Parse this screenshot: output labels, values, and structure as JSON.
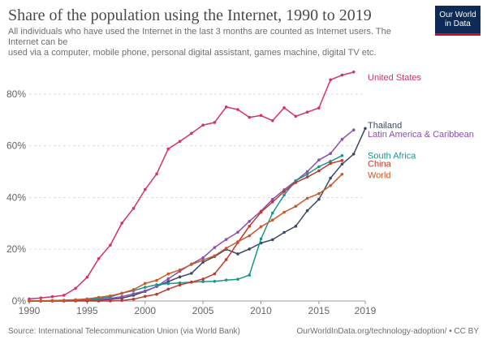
{
  "header": {
    "title": "Share of the population using the Internet, 1990 to 2019",
    "subtitle_line1": "All individuals who have used the Internet in the last 3 months are counted as Internet users. The Internet can be",
    "subtitle_line2": "used via a computer, mobile phone, personal digital assistant, games machine, digital TV etc."
  },
  "logo": {
    "line1": "Our World",
    "line2": "in Data",
    "bg": "#0d2b54",
    "accent": "#c8102e"
  },
  "footer": {
    "source": "Source: International Telecommunication Union (via World Bank)",
    "link": "OurWorldInData.org/technology-adoption/ • CC BY"
  },
  "chart_data": {
    "type": "line",
    "title": "Share of the population using the Internet, 1990 to 2019",
    "xlabel": "",
    "ylabel": "",
    "xlim": [
      1990,
      2019
    ],
    "ylim": [
      0,
      90
    ],
    "grid": true,
    "x_ticks": [
      "1990",
      "1995",
      "2000",
      "2005",
      "2010",
      "2015",
      "2019"
    ],
    "y_ticks": [
      "0%",
      "20%",
      "40%",
      "60%",
      "80%"
    ],
    "y_tick_values": [
      0,
      20,
      40,
      60,
      80
    ],
    "x_tick_values": [
      1990,
      1995,
      2000,
      2005,
      2010,
      2015,
      2019
    ],
    "series": [
      {
        "name": "United States",
        "color": "#d6306f",
        "x": [
          1990,
          1991,
          1992,
          1993,
          1994,
          1995,
          1996,
          1997,
          1998,
          1999,
          2000,
          2001,
          2002,
          2003,
          2004,
          2005,
          2006,
          2007,
          2008,
          2009,
          2010,
          2011,
          2012,
          2013,
          2014,
          2015,
          2016,
          2017,
          2018
        ],
        "values": [
          0.8,
          1.2,
          1.7,
          2.2,
          4.9,
          9.2,
          16.4,
          21.6,
          30.1,
          35.8,
          43.1,
          49.1,
          58.8,
          61.7,
          64.8,
          68.0,
          69.0,
          75.0,
          74.0,
          71.0,
          71.7,
          69.7,
          74.7,
          71.4,
          73.0,
          74.6,
          85.5,
          87.3,
          88.5
        ]
      },
      {
        "name": "Thailand",
        "color": "#3a4a66",
        "x": [
          1990,
          1991,
          1992,
          1993,
          1994,
          1995,
          1996,
          1997,
          1998,
          1999,
          2000,
          2001,
          2002,
          2003,
          2004,
          2005,
          2006,
          2007,
          2008,
          2009,
          2010,
          2011,
          2012,
          2013,
          2014,
          2015,
          2016,
          2017,
          2018,
          2019
        ],
        "values": [
          0,
          0,
          0,
          0,
          0.1,
          0.1,
          0.3,
          0.6,
          1.1,
          2.2,
          3.7,
          5.6,
          7.5,
          9.3,
          10.7,
          15.0,
          17.2,
          20.0,
          18.2,
          20.1,
          22.4,
          23.7,
          26.5,
          28.9,
          34.9,
          39.3,
          47.5,
          52.9,
          56.8,
          66.7
        ]
      },
      {
        "name": "Latin America & Caribbean",
        "color": "#8a4fb0",
        "x": [
          1990,
          1991,
          1992,
          1993,
          1994,
          1995,
          1996,
          1997,
          1998,
          1999,
          2000,
          2001,
          2002,
          2003,
          2004,
          2005,
          2006,
          2007,
          2008,
          2009,
          2010,
          2011,
          2012,
          2013,
          2014,
          2015,
          2016,
          2017,
          2018
        ],
        "values": [
          0,
          0,
          0,
          0.1,
          0.2,
          0.3,
          0.5,
          1.0,
          1.7,
          2.8,
          3.9,
          5.6,
          8.6,
          11.5,
          14.3,
          16.7,
          20.7,
          23.8,
          26.6,
          30.8,
          34.7,
          39.3,
          43.0,
          46.4,
          50.0,
          54.5,
          57.0,
          62.5,
          66.1
        ]
      },
      {
        "name": "South Africa",
        "color": "#17968e",
        "x": [
          1990,
          1991,
          1992,
          1993,
          1994,
          1995,
          1996,
          1997,
          1998,
          1999,
          2000,
          2001,
          2002,
          2003,
          2004,
          2005,
          2006,
          2007,
          2008,
          2009,
          2010,
          2011,
          2012,
          2013,
          2014,
          2015,
          2016,
          2017
        ],
        "values": [
          0,
          0,
          0.1,
          0.2,
          0.4,
          0.7,
          0.9,
          1.6,
          3.0,
          4.0,
          5.3,
          6.3,
          6.7,
          7.0,
          7.3,
          7.5,
          7.6,
          8.1,
          8.4,
          10.0,
          24.0,
          34.0,
          41.0,
          46.5,
          49.0,
          51.9,
          54.0,
          56.2
        ]
      },
      {
        "name": "China",
        "color": "#c0392b",
        "x": [
          1990,
          1991,
          1992,
          1993,
          1994,
          1995,
          1996,
          1997,
          1998,
          1999,
          2000,
          2001,
          2002,
          2003,
          2004,
          2005,
          2006,
          2007,
          2008,
          2009,
          2010,
          2011,
          2012,
          2013,
          2014,
          2015,
          2016,
          2017
        ],
        "values": [
          0,
          0,
          0,
          0,
          0,
          0,
          0,
          0,
          0.2,
          0.7,
          1.8,
          2.6,
          4.6,
          6.2,
          7.3,
          8.5,
          10.5,
          16.0,
          22.6,
          28.9,
          34.3,
          38.3,
          42.3,
          45.8,
          47.9,
          50.3,
          53.2,
          54.3
        ]
      },
      {
        "name": "World",
        "color": "#c75a2a",
        "x": [
          1990,
          1991,
          1992,
          1993,
          1994,
          1995,
          1996,
          1997,
          1998,
          1999,
          2000,
          2001,
          2002,
          2003,
          2004,
          2005,
          2006,
          2007,
          2008,
          2009,
          2010,
          2011,
          2012,
          2013,
          2014,
          2015,
          2016,
          2017
        ],
        "values": [
          0.05,
          0.1,
          0.2,
          0.3,
          0.5,
          0.8,
          1.4,
          2.0,
          3.0,
          4.4,
          6.8,
          8.0,
          10.5,
          12.0,
          14.1,
          15.8,
          17.5,
          20.4,
          22.9,
          25.2,
          28.7,
          31.3,
          34.3,
          36.6,
          39.7,
          41.5,
          44.6,
          49.0
        ]
      }
    ],
    "legend": [
      {
        "name": "United States",
        "color": "#d6306f",
        "anchor_y": 86.5
      },
      {
        "name": "Thailand",
        "color": "#3a4a66",
        "anchor_y": 68.0
      },
      {
        "name": "Latin America & Caribbean",
        "color": "#8a4fb0",
        "anchor_y": 64.6
      },
      {
        "name": "South Africa",
        "color": "#17968e",
        "anchor_y": 56.3
      },
      {
        "name": "China",
        "color": "#c0392b",
        "anchor_y": 53.2
      },
      {
        "name": "World",
        "color": "#c75a2a",
        "anchor_y": 48.7
      }
    ]
  }
}
